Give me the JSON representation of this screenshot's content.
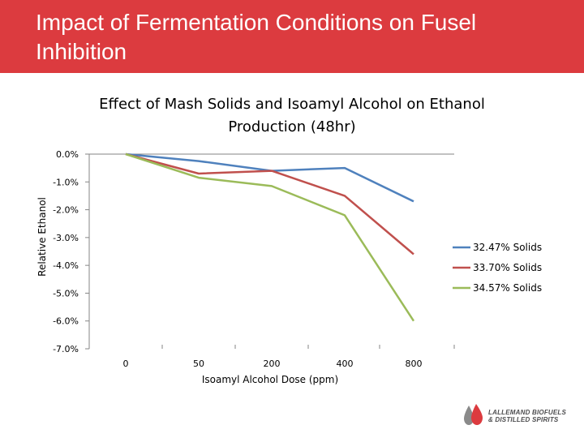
{
  "slide": {
    "title": "Impact of Fermentation Conditions on Fusel Inhibition",
    "header_color": "#dc3b3f"
  },
  "logo": {
    "line1": "LALLEMAND BIOFUELS",
    "line2": "& DISTILLED SPIRITS",
    "icon": "droplet-logo-icon",
    "colors": [
      "#dc3b3f",
      "#8a8a8a"
    ]
  },
  "chart_data": {
    "type": "line",
    "title": "Effect of Mash Solids and Isoamyl Alcohol on Ethanol Production (48hr)",
    "xlabel": "Isoamyl Alcohol Dose (ppm)",
    "ylabel": "Relative Ethanol",
    "categories": [
      "0",
      "50",
      "200",
      "400",
      "800"
    ],
    "y_ticks": [
      "0.0%",
      "-1.0%",
      "-2.0%",
      "-3.0%",
      "-4.0%",
      "-5.0%",
      "-6.0%",
      "-7.0%"
    ],
    "ylim": [
      -7.0,
      0.0
    ],
    "grid": false,
    "legend_position": "right",
    "series": [
      {
        "name": "32.47% Solids",
        "color": "#4f81bd",
        "values": [
          0.0,
          -0.25,
          -0.6,
          -0.5,
          -1.7
        ]
      },
      {
        "name": "33.70% Solids",
        "color": "#c0504d",
        "values": [
          0.0,
          -0.7,
          -0.6,
          -1.5,
          -3.6
        ]
      },
      {
        "name": "34.57% Solids",
        "color": "#9bbb59",
        "values": [
          0.0,
          -0.85,
          -1.15,
          -2.2,
          -6.0
        ]
      }
    ]
  }
}
